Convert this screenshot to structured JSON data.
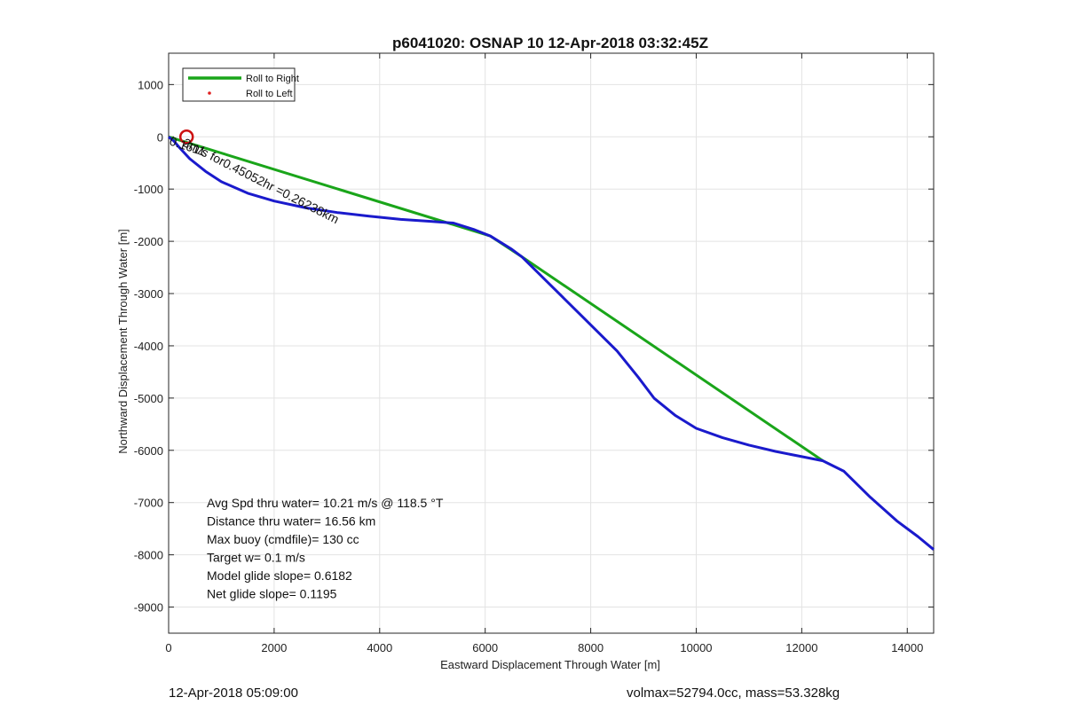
{
  "chart_data": {
    "type": "line",
    "title": "p6041020: OSNAP 10 12-Apr-2018 03:32:45Z",
    "xlabel": "Eastward Displacement Through Water [m]",
    "ylabel": "Northward Displacement Through Water [m]",
    "xlim": [
      0,
      14500
    ],
    "ylim": [
      -9500,
      1600
    ],
    "xticks": [
      0,
      2000,
      4000,
      6000,
      8000,
      10000,
      12000,
      14000
    ],
    "yticks": [
      1000,
      0,
      -1000,
      -2000,
      -3000,
      -4000,
      -5000,
      -6000,
      -7000,
      -8000,
      -9000
    ],
    "grid": true,
    "legend": {
      "placement": "top-left",
      "entries": [
        {
          "label": "Roll to Right",
          "color": "#1aa51a",
          "style": "line"
        },
        {
          "label": "Roll to Left",
          "color": "#e02020",
          "style": "dot"
        }
      ]
    },
    "series": [
      {
        "color": "#1aa51a",
        "x": [
          0,
          6100,
          6700,
          12400
        ],
        "y": [
          0,
          -1900,
          -2300,
          -6200
        ]
      },
      {
        "color": "#1a1acc",
        "x": [
          0,
          100,
          200,
          400,
          700,
          1000,
          1500,
          2000,
          2600,
          3200,
          3800,
          4400,
          5000,
          5400,
          5800,
          6100,
          6500,
          6700,
          7200,
          7800,
          8500,
          8900,
          9200,
          9600,
          10000,
          10500,
          11000,
          11500,
          12000,
          12400,
          12800,
          13300,
          13800,
          14200,
          14500
        ],
        "y": [
          0,
          -80,
          -200,
          -420,
          -660,
          -860,
          -1080,
          -1230,
          -1360,
          -1450,
          -1520,
          -1580,
          -1620,
          -1650,
          -1780,
          -1900,
          -2150,
          -2300,
          -2800,
          -3400,
          -4100,
          -4600,
          -5000,
          -5330,
          -5580,
          -5760,
          -5900,
          -6020,
          -6120,
          -6200,
          -6400,
          -6900,
          -7350,
          -7650,
          -7900
        ]
      }
    ],
    "markers": [
      {
        "x": 340,
        "y": 0,
        "color": "#cc1010",
        "shape": "circle"
      }
    ],
    "annotations": {
      "overlap_text": "2m/s for0.45052hr =0.26238km",
      "overlap_text_prefix": "0.1611",
      "stats": [
        "Avg Spd thru water= 10.21 m/s @ 118.5 °T",
        "Distance thru water= 16.56 km",
        "Max buoy (cmdfile)= 130 cc",
        "Target w= 0.1 m/s",
        "Model glide slope= 0.6182",
        "Net glide slope= 0.1195"
      ]
    }
  },
  "footer": {
    "date": "12-Apr-2018 05:09:00",
    "mass": "volmax=52794.0cc, mass=53.328kg"
  }
}
